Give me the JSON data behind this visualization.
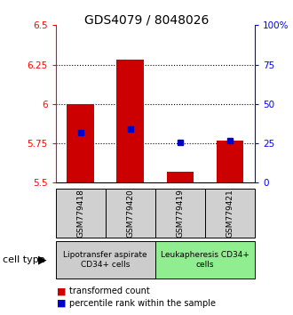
{
  "title": "GDS4079 / 8048026",
  "samples": [
    "GSM779418",
    "GSM779420",
    "GSM779419",
    "GSM779421"
  ],
  "bar_bottoms": [
    5.5,
    5.5,
    5.5,
    5.5
  ],
  "bar_tops": [
    6.0,
    6.28,
    5.57,
    5.77
  ],
  "percentile_values": [
    5.82,
    5.84,
    5.755,
    5.765
  ],
  "ylim_left": [
    5.5,
    6.5
  ],
  "ylim_right": [
    0,
    100
  ],
  "yticks_left": [
    5.5,
    5.75,
    6.0,
    6.25,
    6.5
  ],
  "ytick_labels_left": [
    "5.5",
    "5.75",
    "6",
    "6.25",
    "6.5"
  ],
  "yticks_right": [
    0,
    25,
    50,
    75,
    100
  ],
  "ytick_labels_right": [
    "0",
    "25",
    "50",
    "75",
    "100%"
  ],
  "dotted_lines": [
    5.75,
    6.0,
    6.25
  ],
  "bar_color": "#cc0000",
  "marker_color": "#0000cc",
  "bar_width": 0.55,
  "groups": [
    {
      "label": "Lipotransfer aspirate\nCD34+ cells",
      "indices": [
        0,
        1
      ],
      "color": "#cccccc"
    },
    {
      "label": "Leukapheresis CD34+\ncells",
      "indices": [
        2,
        3
      ],
      "color": "#90ee90"
    }
  ],
  "group_label_prefix": "cell type",
  "legend_items": [
    {
      "color": "#cc0000",
      "label": "transformed count"
    },
    {
      "color": "#0000cc",
      "label": "percentile rank within the sample"
    }
  ],
  "title_fontsize": 10,
  "tick_fontsize": 7.5,
  "sample_fontsize": 6.5,
  "group_fontsize": 6.5,
  "legend_fontsize": 7
}
